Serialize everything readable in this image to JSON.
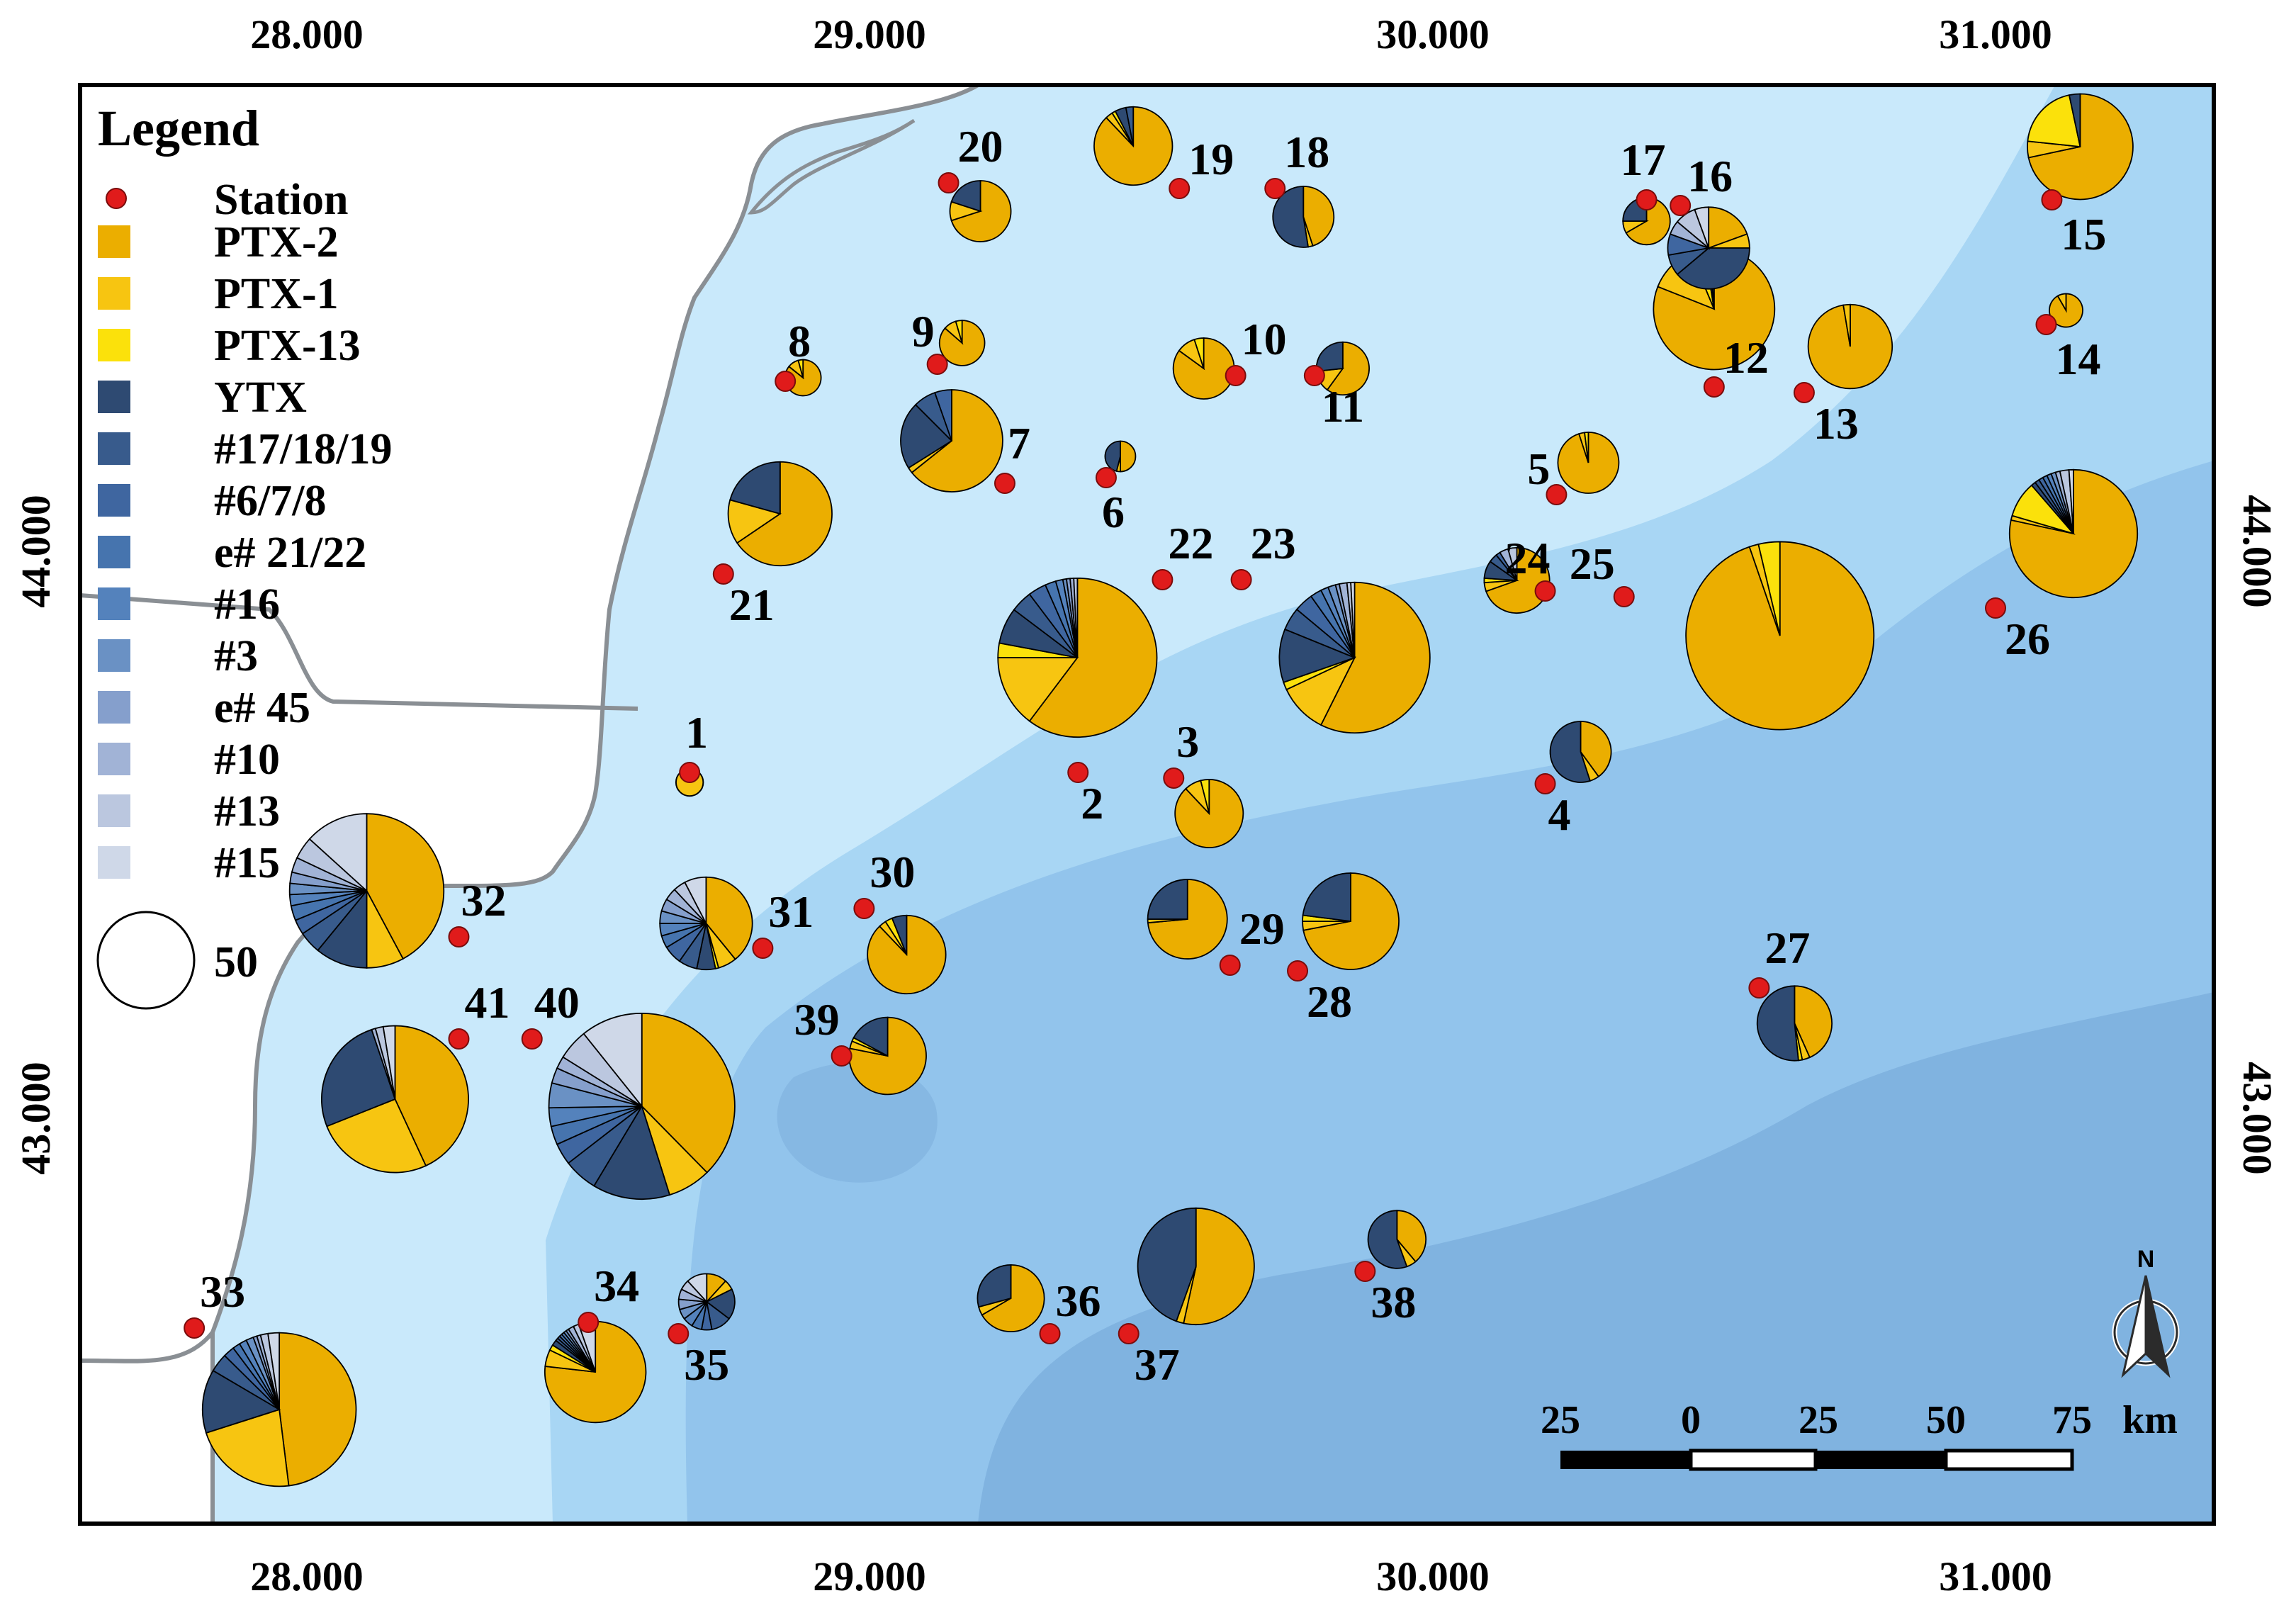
{
  "legend": {
    "title": "Legend",
    "station_label": "Station",
    "size_ref_label": "50",
    "items": [
      {
        "label": "PTX-2",
        "color": "#EBAE00"
      },
      {
        "label": "PTX-1",
        "color": "#F7C511"
      },
      {
        "label": "PTX-13",
        "color": "#FBE10B"
      },
      {
        "label": "YTX",
        "color": "#2E4A72"
      },
      {
        "label": "#17/18/19",
        "color": "#385B8C"
      },
      {
        "label": "#6/7/8",
        "color": "#3F66A0"
      },
      {
        "label": "e# 21/22",
        "color": "#4674AE"
      },
      {
        "label": "#16",
        "color": "#5482BC"
      },
      {
        "label": "#3",
        "color": "#6A91C4"
      },
      {
        "label": "e# 45",
        "color": "#859FCC"
      },
      {
        "label": "#10",
        "color": "#A1B3D6"
      },
      {
        "label": "#13",
        "color": "#BBC7DF"
      },
      {
        "label": "#15",
        "color": "#CFD8E8"
      }
    ]
  },
  "axes": {
    "top_labels": [
      "28.000",
      "29.000",
      "30.000",
      "31.000"
    ],
    "bottom_labels": [
      "28.000",
      "29.000",
      "30.000",
      "31.000"
    ],
    "left_labels": [
      "44.000",
      "43.000"
    ],
    "right_labels": [
      "44.000",
      "43.000"
    ]
  },
  "scale_bar": {
    "labels": [
      "25",
      "0",
      "25",
      "50",
      "75"
    ],
    "unit": "km"
  },
  "north_arrow": {
    "label": "N"
  },
  "colors": {
    "sea_light": "#C9E9FB",
    "sea_mid": "#A8D6F4",
    "sea_deep": "#92C4EC",
    "sea_deepest": "#80B3E0",
    "land": "#FFFFFF",
    "coastline": "#8A8F94",
    "station": "#E01B1B"
  },
  "stations": [
    {
      "id": "1",
      "lon": 28.68,
      "lat": 43.61,
      "total": 4,
      "comp": [
        0,
        4,
        0,
        0,
        0,
        0,
        0,
        0,
        0,
        0,
        0,
        0,
        0
      ]
    },
    {
      "id": "2",
      "lon": 29.37,
      "lat": 43.61,
      "total": 0,
      "comp": []
    },
    {
      "id": "3",
      "lon": 29.54,
      "lat": 43.6,
      "total": 25,
      "comp": [
        22,
        2,
        1,
        0,
        0,
        0,
        0,
        0,
        0,
        0,
        0,
        0,
        0
      ]
    },
    {
      "id": "4",
      "lon": 30.2,
      "lat": 43.59,
      "total": 20,
      "comp": [
        8,
        1,
        0,
        11,
        0,
        0,
        0,
        0,
        0,
        0,
        0,
        0,
        0
      ]
    },
    {
      "id": "5",
      "lon": 30.22,
      "lat": 44.1,
      "total": 20,
      "comp": [
        19,
        0.6,
        0.4,
        0,
        0,
        0,
        0,
        0,
        0,
        0,
        0,
        0,
        0
      ]
    },
    {
      "id": "6",
      "lon": 29.42,
      "lat": 44.13,
      "total": 5,
      "comp": [
        2.5,
        0.2,
        0,
        2.3,
        0,
        0,
        0,
        0,
        0,
        0,
        0,
        0,
        0
      ]
    },
    {
      "id": "7",
      "lon": 29.24,
      "lat": 44.12,
      "total": 56,
      "comp": [
        36,
        1,
        0,
        12,
        4,
        3,
        0,
        0,
        0,
        0,
        0,
        0,
        0
      ]
    },
    {
      "id": "8",
      "lon": 28.85,
      "lat": 44.3,
      "total": 7,
      "comp": [
        6,
        0.7,
        0.3,
        0,
        0,
        0,
        0,
        0,
        0,
        0,
        0,
        0,
        0
      ]
    },
    {
      "id": "9",
      "lon": 29.12,
      "lat": 44.33,
      "total": 11,
      "comp": [
        9.5,
        1,
        0.5,
        0,
        0,
        0,
        0,
        0,
        0,
        0,
        0,
        0,
        0
      ]
    },
    {
      "id": "10",
      "lon": 29.65,
      "lat": 44.31,
      "total": 20,
      "comp": [
        17,
        2,
        1,
        0,
        0,
        0,
        0,
        0,
        0,
        0,
        0,
        0,
        0
      ]
    },
    {
      "id": "11",
      "lon": 29.79,
      "lat": 44.31,
      "total": 15,
      "comp": [
        9,
        2,
        0,
        4,
        0,
        0,
        0,
        0,
        0,
        0,
        0,
        0,
        0
      ]
    },
    {
      "id": "12",
      "lon": 30.5,
      "lat": 44.29,
      "total": 79,
      "comp": [
        64,
        10,
        3,
        1,
        1,
        0,
        0,
        0,
        0,
        0,
        0,
        0,
        0
      ]
    },
    {
      "id": "13",
      "lon": 30.66,
      "lat": 44.28,
      "total": 38,
      "comp": [
        37,
        1,
        0,
        0,
        0,
        0,
        0,
        0,
        0,
        0,
        0,
        0,
        0
      ]
    },
    {
      "id": "14",
      "lon": 31.09,
      "lat": 44.4,
      "total": 6,
      "comp": [
        5.5,
        0.5,
        0,
        0,
        0,
        0,
        0,
        0,
        0,
        0,
        0,
        0,
        0
      ]
    },
    {
      "id": "15",
      "lon": 31.1,
      "lat": 44.62,
      "total": 60,
      "comp": [
        43,
        3,
        12,
        2,
        0,
        0,
        0,
        0,
        0,
        0,
        0,
        0,
        0
      ]
    },
    {
      "id": "16",
      "lon": 30.44,
      "lat": 44.61,
      "total": 36,
      "comp": [
        7,
        2,
        0,
        14,
        3,
        3,
        0,
        0,
        0,
        0,
        2,
        3,
        2
      ]
    },
    {
      "id": "17",
      "lon": 30.38,
      "lat": 44.62,
      "total": 12,
      "comp": [
        8,
        1,
        0,
        3,
        0,
        0,
        0,
        0,
        0,
        0,
        0,
        0,
        0
      ]
    },
    {
      "id": "18",
      "lon": 29.72,
      "lat": 44.64,
      "total": 20,
      "comp": [
        9,
        0.5,
        0,
        10.5,
        0,
        0,
        0,
        0,
        0,
        0,
        0,
        0,
        0
      ]
    },
    {
      "id": "19",
      "lon": 29.55,
      "lat": 44.64,
      "total": 33,
      "comp": [
        29,
        1,
        0.5,
        1.5,
        1,
        0,
        0,
        0,
        0,
        0,
        0,
        0,
        0
      ]
    },
    {
      "id": "20",
      "lon": 29.14,
      "lat": 44.65,
      "total": 20,
      "comp": [
        14,
        2,
        0,
        4,
        0,
        0,
        0,
        0,
        0,
        0,
        0,
        0,
        0
      ]
    },
    {
      "id": "21",
      "lon": 28.74,
      "lat": 43.96,
      "total": 58,
      "comp": [
        38,
        8,
        0,
        12,
        0,
        0,
        0,
        0,
        0,
        0,
        0,
        0,
        0
      ]
    },
    {
      "id": "22",
      "lon": 29.52,
      "lat": 43.95,
      "total": 136,
      "comp": [
        82,
        20,
        4,
        10,
        6,
        5,
        3,
        2,
        1,
        1,
        1,
        1,
        0
      ]
    },
    {
      "id": "23",
      "lon": 29.66,
      "lat": 43.95,
      "total": 122,
      "comp": [
        70,
        13,
        2,
        14,
        6,
        5,
        3,
        2,
        2,
        1,
        2,
        1,
        1
      ]
    },
    {
      "id": "24",
      "lon": 30.2,
      "lat": 43.93,
      "total": 23,
      "comp": [
        16,
        1,
        0.5,
        2,
        1,
        0.5,
        0,
        0,
        0,
        0,
        1,
        1,
        0
      ]
    },
    {
      "id": "25",
      "lon": 30.34,
      "lat": 43.92,
      "total": 190,
      "comp": [
        180,
        3,
        7,
        0,
        0,
        0,
        0,
        0,
        0,
        0,
        0,
        0,
        0
      ]
    },
    {
      "id": "26",
      "lon": 31.0,
      "lat": 43.9,
      "total": 88,
      "comp": [
        69,
        1,
        8,
        1,
        1,
        1,
        1,
        1,
        1,
        0,
        1,
        2,
        1
      ]
    },
    {
      "id": "27",
      "lon": 30.58,
      "lat": 43.23,
      "total": 30,
      "comp": [
        13,
        1,
        0.5,
        15.5,
        0,
        0,
        0,
        0,
        0,
        0,
        0,
        0,
        0
      ]
    },
    {
      "id": "28",
      "lon": 29.76,
      "lat": 43.26,
      "total": 50,
      "comp": [
        36,
        1.5,
        1,
        11.5,
        0,
        0,
        0,
        0,
        0,
        0,
        0,
        0,
        0
      ]
    },
    {
      "id": "29",
      "lon": 29.64,
      "lat": 43.27,
      "total": 34,
      "comp": [
        25,
        0.5,
        0,
        8.5,
        0,
        0,
        0,
        0,
        0,
        0,
        0,
        0,
        0
      ]
    },
    {
      "id": "30",
      "lon": 28.99,
      "lat": 43.37,
      "total": 33,
      "comp": [
        29,
        1,
        1,
        2,
        0,
        0,
        0,
        0,
        0,
        0,
        0,
        0,
        0
      ]
    },
    {
      "id": "31",
      "lon": 28.81,
      "lat": 43.3,
      "total": 46,
      "comp": [
        18,
        3,
        0.5,
        3,
        3,
        3,
        2,
        2,
        2,
        2,
        2,
        2,
        3.5
      ]
    },
    {
      "id": "32",
      "lon": 28.27,
      "lat": 43.32,
      "total": 128,
      "comp": [
        54,
        10,
        0,
        14,
        6,
        4,
        4,
        3,
        3,
        3,
        4,
        6,
        17
      ]
    },
    {
      "id": "33",
      "lon": 27.8,
      "lat": 42.63,
      "total": 127,
      "comp": [
        61,
        28,
        0,
        17,
        5,
        3,
        2,
        2,
        2,
        1,
        1,
        2,
        3
      ]
    },
    {
      "id": "34",
      "lon": 28.5,
      "lat": 42.64,
      "total": 55,
      "comp": [
        43,
        3,
        1,
        1,
        0.5,
        0.5,
        0.5,
        0.5,
        0.5,
        0.5,
        1,
        1,
        3
      ]
    },
    {
      "id": "35",
      "lon": 28.66,
      "lat": 42.62,
      "total": 17,
      "comp": [
        2,
        1,
        0,
        3,
        2,
        1,
        1,
        1,
        1,
        1,
        1,
        1,
        2
      ]
    },
    {
      "id": "36",
      "lon": 29.32,
      "lat": 42.62,
      "total": 24,
      "comp": [
        16,
        1,
        0,
        7,
        0,
        0,
        0,
        0,
        0,
        0,
        0,
        0,
        0
      ]
    },
    {
      "id": "37",
      "lon": 29.46,
      "lat": 42.62,
      "total": 73,
      "comp": [
        39,
        1.5,
        0,
        32.5,
        0,
        0,
        0,
        0,
        0,
        0,
        0,
        0,
        0
      ]
    },
    {
      "id": "38",
      "lon": 29.88,
      "lat": 42.73,
      "total": 18,
      "comp": [
        7,
        1,
        0,
        10,
        0,
        0,
        0,
        0,
        0,
        0,
        0,
        0,
        0
      ]
    },
    {
      "id": "39",
      "lon": 28.95,
      "lat": 43.11,
      "total": 32,
      "comp": [
        25,
        1,
        0.5,
        5.5,
        0,
        0,
        0,
        0,
        0,
        0,
        0,
        0,
        0
      ]
    },
    {
      "id": "40",
      "lon": 28.4,
      "lat": 43.14,
      "total": 186,
      "comp": [
        70,
        14,
        0,
        25,
        11,
        7,
        6,
        6,
        8,
        5,
        4,
        10,
        20
      ]
    },
    {
      "id": "41",
      "lon": 28.27,
      "lat": 43.14,
      "total": 116,
      "comp": [
        50,
        30,
        0,
        30,
        0,
        0,
        0,
        0,
        0,
        0,
        1,
        2,
        3
      ]
    }
  ]
}
